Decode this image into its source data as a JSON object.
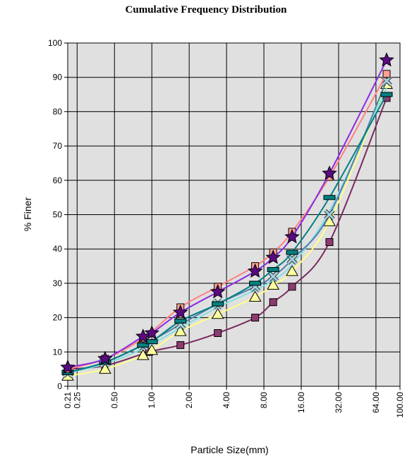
{
  "chart_data": {
    "type": "line",
    "title": "Cumulative Frequency Distribution",
    "xlabel": "Particle Size(mm)",
    "ylabel": "% Finer",
    "xscale": "log",
    "xlim": [
      0.21,
      100
    ],
    "ylim": [
      0,
      100
    ],
    "grid": true,
    "plot_background": "#e0e0e0",
    "y_ticks": [
      "0",
      "10",
      "20",
      "30",
      "40",
      "50",
      "60",
      "70",
      "80",
      "90",
      "100"
    ],
    "x_ticks": [
      {
        "value": 0.21,
        "label": "0.21"
      },
      {
        "value": 0.25,
        "label": "0.25"
      },
      {
        "value": 0.5,
        "label": "0.50"
      },
      {
        "value": 1,
        "label": "1.00"
      },
      {
        "value": 2,
        "label": "2.00"
      },
      {
        "value": 4,
        "label": "4.00"
      },
      {
        "value": 8,
        "label": "8.00"
      },
      {
        "value": 16,
        "label": "16.00"
      },
      {
        "value": 32,
        "label": "32.00"
      },
      {
        "value": 64,
        "label": "64.00"
      },
      {
        "value": 100,
        "label": "100.00"
      }
    ],
    "series": [
      {
        "color": "#7b2a5e",
        "marker": "square",
        "marker_color": "#8e3a70",
        "points": [
          [
            0.21,
            5
          ],
          [
            0.42,
            6
          ],
          [
            0.95,
            10
          ],
          [
            1.7,
            12
          ],
          [
            3.4,
            15.5
          ],
          [
            6.8,
            20
          ],
          [
            9.5,
            24.5
          ],
          [
            13.5,
            29
          ],
          [
            27,
            42
          ],
          [
            78,
            84
          ]
        ]
      },
      {
        "color": "#ffff88",
        "marker": "triangle",
        "marker_color": "#ffffa0",
        "points": [
          [
            0.21,
            3
          ],
          [
            0.42,
            5
          ],
          [
            0.85,
            9
          ],
          [
            1.0,
            10.5
          ],
          [
            1.7,
            16
          ],
          [
            3.4,
            21
          ],
          [
            6.8,
            26
          ],
          [
            9.5,
            29.5
          ],
          [
            13.5,
            33.5
          ],
          [
            27,
            48
          ],
          [
            78,
            88
          ]
        ]
      },
      {
        "color": "#80e0e0",
        "marker": "none",
        "points": [
          [
            0.21,
            4
          ],
          [
            0.42,
            6.5
          ],
          [
            0.85,
            11
          ],
          [
            1.7,
            17
          ],
          [
            3.4,
            23
          ],
          [
            6.8,
            28
          ],
          [
            9.5,
            31
          ],
          [
            13.5,
            35.5
          ],
          [
            27,
            51
          ],
          [
            78,
            87
          ]
        ]
      },
      {
        "color": "#5080b0",
        "marker": "x",
        "marker_color": "#9fd0e0",
        "points": [
          [
            0.21,
            4
          ],
          [
            0.42,
            7
          ],
          [
            0.85,
            12
          ],
          [
            1.7,
            18
          ],
          [
            3.4,
            24
          ],
          [
            6.8,
            29
          ],
          [
            9.5,
            32
          ],
          [
            13.5,
            37
          ],
          [
            27,
            50
          ],
          [
            78,
            89
          ]
        ]
      },
      {
        "color": "#008080",
        "marker": "bar",
        "marker_color": "#008080",
        "points": [
          [
            0.21,
            4
          ],
          [
            0.42,
            7
          ],
          [
            0.85,
            12
          ],
          [
            1.0,
            13
          ],
          [
            1.7,
            19
          ],
          [
            3.4,
            24
          ],
          [
            6.8,
            30
          ],
          [
            9.5,
            34
          ],
          [
            13.5,
            39
          ],
          [
            27,
            55
          ],
          [
            78,
            85
          ]
        ]
      },
      {
        "color": "#ff8080",
        "marker": "square",
        "marker_color": "#ffa090",
        "points": [
          [
            0.21,
            5
          ],
          [
            0.42,
            8
          ],
          [
            0.85,
            14
          ],
          [
            1.7,
            23
          ],
          [
            3.4,
            29
          ],
          [
            6.8,
            35
          ],
          [
            9.5,
            39
          ],
          [
            13.5,
            45
          ],
          [
            27,
            61
          ],
          [
            78,
            91
          ]
        ]
      },
      {
        "color": "#8a2be2",
        "marker": "star",
        "marker_color": "#5a0a80",
        "points": [
          [
            0.21,
            5.5
          ],
          [
            0.42,
            8
          ],
          [
            0.85,
            14.5
          ],
          [
            1.0,
            15.5
          ],
          [
            1.7,
            21.5
          ],
          [
            3.4,
            27.5
          ],
          [
            6.8,
            33.5
          ],
          [
            9.5,
            37.5
          ],
          [
            13.5,
            43.5
          ],
          [
            27,
            62
          ],
          [
            78,
            95
          ]
        ]
      }
    ]
  }
}
